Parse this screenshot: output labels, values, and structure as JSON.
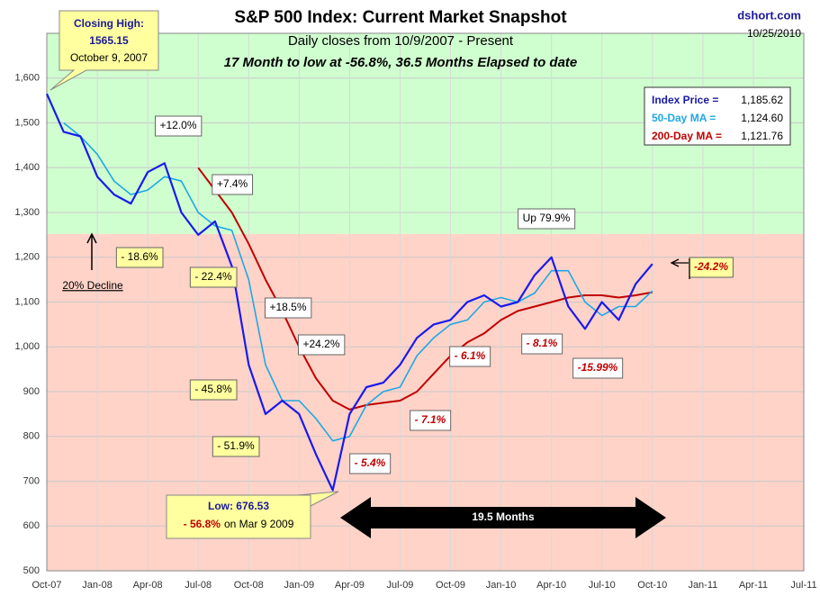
{
  "chart_data": {
    "type": "line",
    "title": "S&P 500 Index: Current Market Snapshot",
    "subtitle": "Daily closes from 10/9/2007 - Present",
    "subtitle2": "17 Month to low at -56.8%,  36.5 Months Elapsed to date",
    "source": "dshort.com",
    "date": "10/25/2010",
    "x": [
      "2007-10",
      "2007-11",
      "2007-12",
      "2008-01",
      "2008-02",
      "2008-03",
      "2008-04",
      "2008-05",
      "2008-06",
      "2008-07",
      "2008-08",
      "2008-09",
      "2008-10",
      "2008-11",
      "2008-12",
      "2009-01",
      "2009-02",
      "2009-03",
      "2009-04",
      "2009-05",
      "2009-06",
      "2009-07",
      "2009-08",
      "2009-09",
      "2009-10",
      "2009-11",
      "2009-12",
      "2010-01",
      "2010-02",
      "2010-03",
      "2010-04",
      "2010-05",
      "2010-06",
      "2010-07",
      "2010-08",
      "2010-09",
      "2010-10"
    ],
    "series": [
      {
        "name": "Index Price",
        "color": "#1a1aee",
        "width": 2.2,
        "values": [
          1565,
          1480,
          1470,
          1380,
          1340,
          1320,
          1390,
          1410,
          1300,
          1250,
          1280,
          1180,
          960,
          850,
          880,
          850,
          760,
          680,
          850,
          910,
          920,
          960,
          1020,
          1050,
          1060,
          1100,
          1115,
          1090,
          1100,
          1160,
          1200,
          1090,
          1040,
          1100,
          1060,
          1140,
          1185
        ]
      },
      {
        "name": "50-Day MA",
        "color": "#1ea8e6",
        "width": 1.6,
        "values": [
          null,
          1500,
          1470,
          1430,
          1370,
          1340,
          1350,
          1380,
          1370,
          1300,
          1270,
          1260,
          1150,
          960,
          880,
          880,
          840,
          790,
          800,
          870,
          900,
          910,
          980,
          1020,
          1050,
          1060,
          1100,
          1110,
          1100,
          1120,
          1170,
          1170,
          1100,
          1070,
          1090,
          1090,
          1125
        ]
      },
      {
        "name": "200-Day MA",
        "color": "#c00000",
        "width": 2,
        "values": [
          null,
          null,
          null,
          null,
          null,
          null,
          null,
          null,
          null,
          1400,
          1350,
          1300,
          1230,
          1150,
          1080,
          1000,
          930,
          880,
          860,
          870,
          875,
          880,
          900,
          940,
          980,
          1010,
          1030,
          1060,
          1080,
          1090,
          1100,
          1110,
          1115,
          1115,
          1110,
          1115,
          1122
        ]
      }
    ],
    "legend": [
      {
        "label": "Index Price =",
        "value": "1,185.62",
        "color": "#1a1aa0"
      },
      {
        "label": "50-Day MA =",
        "value": "1,124.60",
        "color": "#1ea8e6"
      },
      {
        "label": "200-Day MA =",
        "value": "1,121.76",
        "color": "#c00000"
      }
    ],
    "xlim": [
      "2007-10",
      "2011-07"
    ],
    "xticks": [
      {
        "value": "2007-10",
        "label": "Oct-07"
      },
      {
        "value": "2008-01",
        "label": "Jan-08"
      },
      {
        "value": "2008-04",
        "label": "Apr-08"
      },
      {
        "value": "2008-07",
        "label": "Jul-08"
      },
      {
        "value": "2008-10",
        "label": "Oct-08"
      },
      {
        "value": "2009-01",
        "label": "Jan-09"
      },
      {
        "value": "2009-04",
        "label": "Apr-09"
      },
      {
        "value": "2009-07",
        "label": "Jul-09"
      },
      {
        "value": "2009-10",
        "label": "Oct-09"
      },
      {
        "value": "2010-01",
        "label": "Jan-10"
      },
      {
        "value": "2010-04",
        "label": "Apr-10"
      },
      {
        "value": "2010-07",
        "label": "Jul-10"
      },
      {
        "value": "2010-10",
        "label": "Oct-10"
      },
      {
        "value": "2011-01",
        "label": "Jan-11"
      },
      {
        "value": "2011-04",
        "label": "Apr-11"
      },
      {
        "value": "2011-07",
        "label": "Jul-11"
      }
    ],
    "ylim": [
      500,
      1700
    ],
    "yticks": [
      500,
      600,
      700,
      800,
      900,
      {
        "value": 1000,
        "label": "1,000"
      },
      {
        "value": 1100,
        "label": "1,100"
      },
      {
        "value": 1200,
        "label": "1,200"
      },
      {
        "value": 1300,
        "label": "1,300"
      },
      {
        "value": 1400,
        "label": "1,400"
      },
      {
        "value": 1500,
        "label": "1,500"
      },
      {
        "value": 1600,
        "label": "1,600"
      }
    ],
    "decline_level": 1252,
    "zone_colors": [
      "#cfffcf",
      "#ffd3c8"
    ],
    "grid": true,
    "high_box": [
      "Closing High:",
      "1565.15",
      "October 9, 2007"
    ],
    "low_box": {
      "line1": "Low: 676.53",
      "pct": "- 56.8%",
      "rest": "on Mar 9 2009"
    },
    "decline_label": "20% Decline",
    "arrow_label": "19.5  Months",
    "annotations": [
      {
        "text": "+12.0%",
        "fill": "#ffffff",
        "color": "#000000"
      },
      {
        "text": "+7.4%",
        "fill": "#ffffff",
        "color": "#000000"
      },
      {
        "text": "- 18.6%",
        "fill": "#ffffa0",
        "color": "#000000"
      },
      {
        "text": "- 22.4%",
        "fill": "#ffffa0",
        "color": "#000000"
      },
      {
        "text": "+18.5%",
        "fill": "#ffffff",
        "color": "#000000"
      },
      {
        "text": "+24.2%",
        "fill": "#ffffff",
        "color": "#000000"
      },
      {
        "text": "- 45.8%",
        "fill": "#ffffa0",
        "color": "#000000"
      },
      {
        "text": "- 51.9%",
        "fill": "#ffffa0",
        "color": "#000000"
      },
      {
        "text": "Up 79.9%",
        "fill": "#ffffff",
        "color": "#000000"
      },
      {
        "text": "- 6.1%",
        "fill": "#ffffff",
        "color": "#c00000"
      },
      {
        "text": "- 8.1%",
        "fill": "#ffffff",
        "color": "#c00000"
      },
      {
        "text": "- 7.1%",
        "fill": "#ffffff",
        "color": "#c00000"
      },
      {
        "text": "- 5.4%",
        "fill": "#ffffff",
        "color": "#c00000"
      },
      {
        "text": "-15.99%",
        "fill": "#ffffff",
        "color": "#c00000"
      },
      {
        "text": "-24.2%",
        "fill": "#ffffa0",
        "color": "#c00000"
      }
    ]
  }
}
